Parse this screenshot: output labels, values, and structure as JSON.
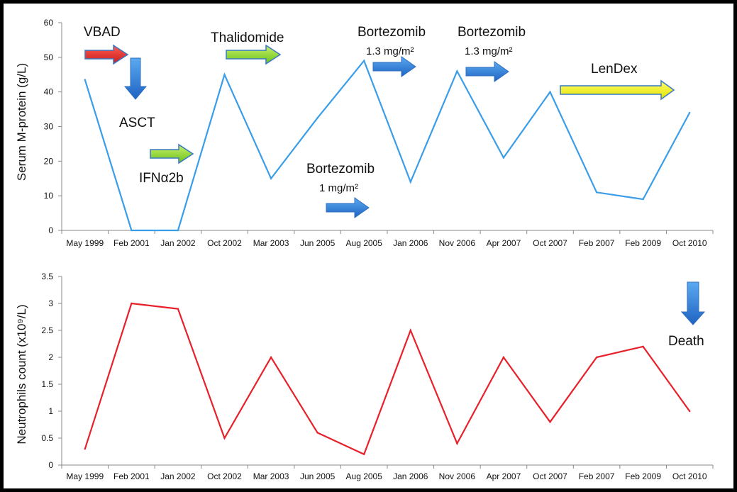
{
  "colors": {
    "frame": "#000000",
    "mprotein_line": "#3a9de8",
    "neutrophils_line": "#e8202a",
    "arrow_red": "#e53935",
    "arrow_green": "#8bd62a",
    "arrow_blue": "#2f7fd6",
    "arrow_yellow": "#f2f20f",
    "arrow_outline": "#3a78c4"
  },
  "chart_data": [
    {
      "type": "line",
      "ylabel": "Serum M-protein (g/L)",
      "categories": [
        "May 1999",
        "Feb 2001",
        "Jan 2002",
        "Oct 2002",
        "Mar 2003",
        "Jun 2005",
        "Aug 2005",
        "Jan 2006",
        "Nov 2006",
        "Apr 2007",
        "Oct 2007",
        "Feb 2007",
        "Feb 2009",
        "Oct 2010"
      ],
      "ylim": [
        0,
        60
      ],
      "yticks": [
        "0",
        "10",
        "20",
        "30",
        "40",
        "50",
        "60"
      ],
      "series": [
        {
          "values": [
            43.5,
            0,
            0,
            45,
            15,
            32.5,
            49,
            14,
            46,
            21,
            40,
            11,
            9,
            34
          ]
        }
      ],
      "annotations": {
        "vbad": "VBAD",
        "asct": "ASCT",
        "ifn": "IFNα2b",
        "thalidomide": "Thalidomide",
        "bort1_name": "Bortezomib",
        "bort1_dose": "1 mg/m²",
        "bort2_name": "Bortezomib",
        "bort2_dose": "1.3 mg/m²",
        "bort3_name": "Bortezomib",
        "bort3_dose": "1.3 mg/m²",
        "lendex": "LenDex"
      }
    },
    {
      "type": "line",
      "ylabel": "Neutrophils count (x10⁹/L)",
      "categories": [
        "May 1999",
        "Feb 2001",
        "Jan 2002",
        "Oct 2002",
        "Mar 2003",
        "Jun 2005",
        "Aug 2005",
        "Jan 2006",
        "Nov 2006",
        "Apr 2007",
        "Oct 2007",
        "Feb 2007",
        "Feb 2009",
        "Oct 2010"
      ],
      "ylim": [
        0,
        3.5
      ],
      "yticks": [
        "0",
        "0.5",
        "1",
        "1.5",
        "2",
        "2.5",
        "3",
        "3.5"
      ],
      "series": [
        {
          "values": [
            0.3,
            3.0,
            2.9,
            0.5,
            2.0,
            0.6,
            0.2,
            2.5,
            0.4,
            2.0,
            0.8,
            2.0,
            2.2,
            1.0
          ]
        }
      ],
      "annotations": {
        "death": "Death"
      }
    }
  ]
}
